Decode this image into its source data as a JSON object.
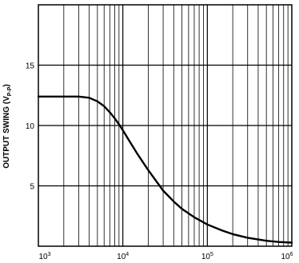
{
  "chart_data": {
    "type": "line",
    "title": "",
    "xlabel": "",
    "ylabel": "OUTPUT SWING (V",
    "ylabel_sub": "P-P",
    "ylabel_close": ")",
    "x_scale": "log",
    "xlim": [
      1000,
      1000000
    ],
    "ylim": [
      0,
      20
    ],
    "grid": true,
    "x_tick_labels": [
      {
        "value": 1000,
        "base": "10",
        "exp": "3"
      },
      {
        "value": 10000,
        "base": "10",
        "exp": "4"
      },
      {
        "value": 100000,
        "base": "10",
        "exp": "5"
      },
      {
        "value": 1000000,
        "base": "10",
        "exp": "6"
      }
    ],
    "y_ticks": [
      {
        "value": 5,
        "label": "5"
      },
      {
        "value": 10,
        "label": "10"
      },
      {
        "value": 15,
        "label": "15"
      }
    ],
    "series": [
      {
        "color": "#000000",
        "x": [
          1000,
          2000,
          3000,
          4000,
          5000,
          6000,
          7000,
          8000,
          9000,
          10000,
          12000,
          15000,
          20000,
          30000,
          40000,
          50000,
          70000,
          100000,
          150000,
          200000,
          300000,
          500000,
          700000,
          1000000
        ],
        "y": [
          12.4,
          12.4,
          12.4,
          12.3,
          12.0,
          11.6,
          11.1,
          10.6,
          10.1,
          9.6,
          8.7,
          7.6,
          6.3,
          4.6,
          3.7,
          3.1,
          2.4,
          1.8,
          1.3,
          1.0,
          0.7,
          0.45,
          0.35,
          0.3
        ]
      }
    ]
  }
}
